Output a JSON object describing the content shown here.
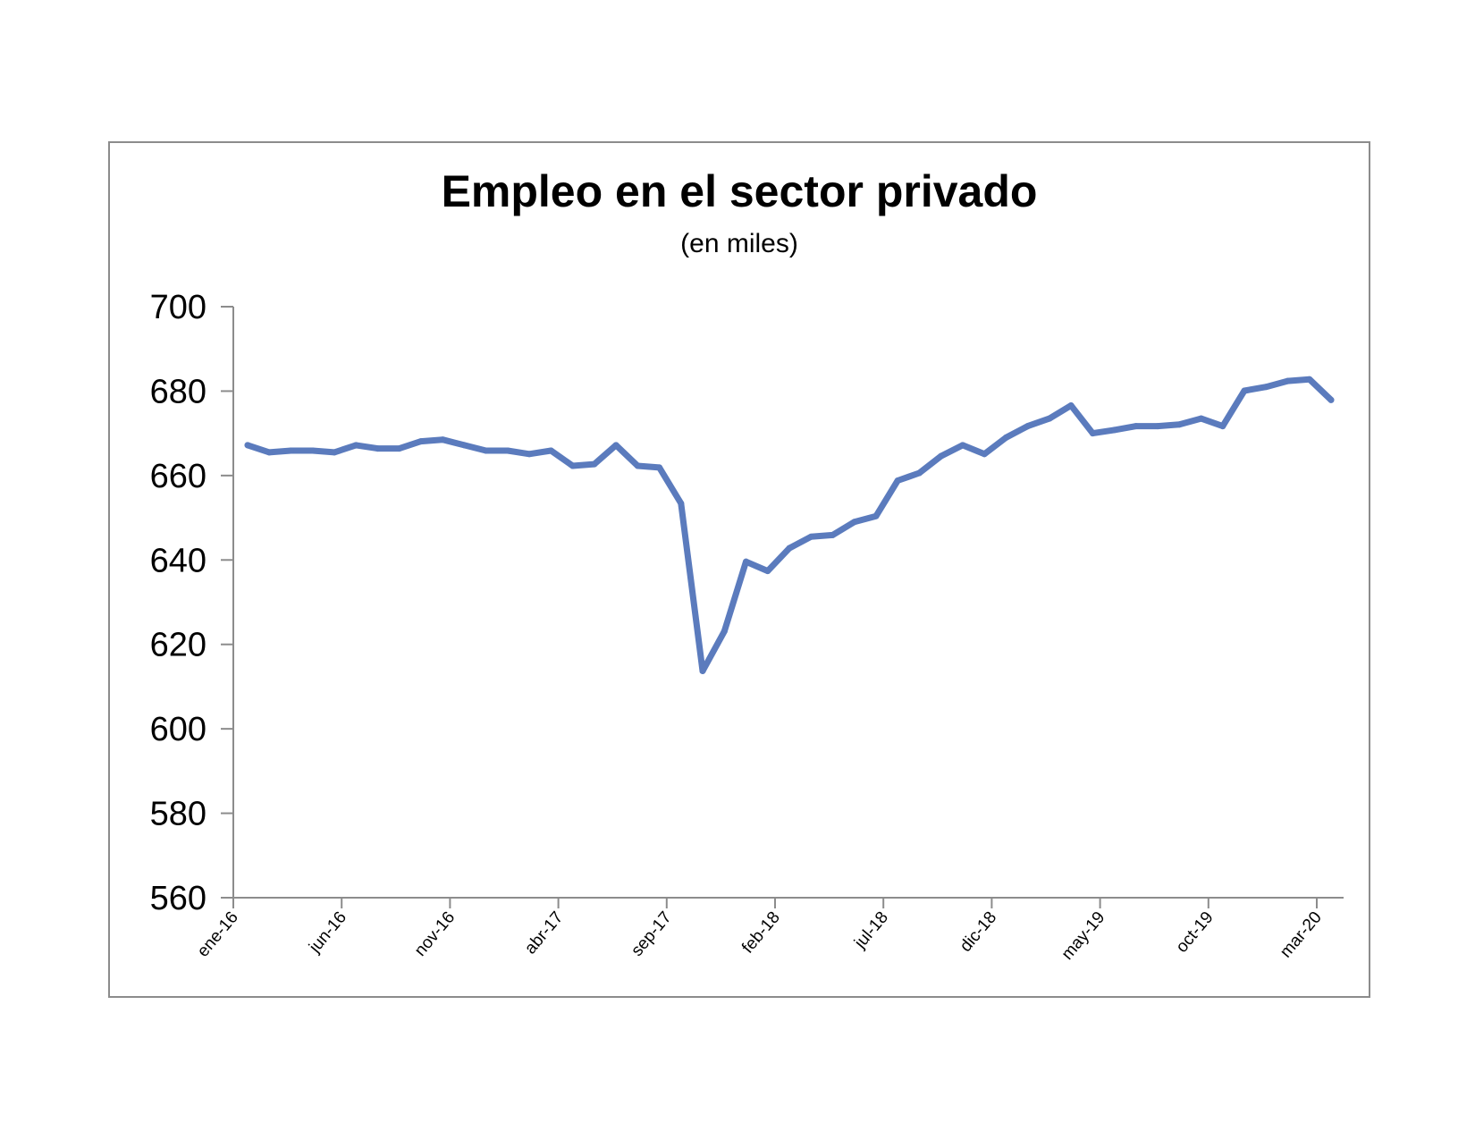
{
  "chart_data": {
    "type": "line",
    "title": "Empleo en el sector privado",
    "subtitle": "(en miles)",
    "xlabel": "",
    "ylabel": "",
    "ylim": [
      560,
      700
    ],
    "yticks": [
      560,
      580,
      600,
      620,
      640,
      660,
      680,
      700
    ],
    "xtick_labels": [
      "ene-16",
      "jun-16",
      "nov-16",
      "abr-17",
      "sep-17",
      "feb-18",
      "jul-18",
      "dic-18",
      "may-19",
      "oct-19",
      "mar-20"
    ],
    "xtick_every": 5,
    "grid": false,
    "legend": "none",
    "line_color": "#5b7bbd",
    "series": [
      {
        "values": [
          667.2,
          665.5,
          665.9,
          665.9,
          665.5,
          667.2,
          666.4,
          666.4,
          668.1,
          668.5,
          667.2,
          665.9,
          665.9,
          665.1,
          665.9,
          662.3,
          662.7,
          667.2,
          662.3,
          661.9,
          653.4,
          613.7,
          623.1,
          639.6,
          637.4,
          642.8,
          645.5,
          645.9,
          649.0,
          650.4,
          658.8,
          660.6,
          664.6,
          667.2,
          665.1,
          669.0,
          671.7,
          673.5,
          676.6,
          670.0,
          670.8,
          671.7,
          671.7,
          672.1,
          673.5,
          671.7,
          680.1,
          681.0,
          682.4,
          682.8,
          677.9
        ]
      }
    ]
  }
}
